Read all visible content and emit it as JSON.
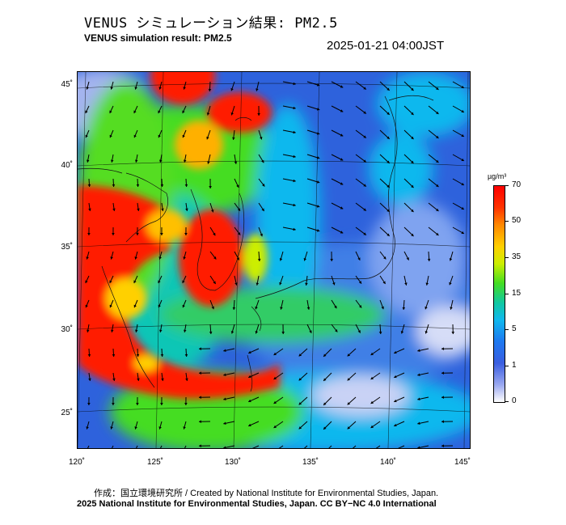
{
  "header": {
    "title_jp": "VENUS シミュレーション結果: PM2.5",
    "title_en": "VENUS simulation result: PM2.5",
    "timestamp": "2025-01-21 04:00JST"
  },
  "map": {
    "region": "East Asia / Japan",
    "lat_labels": [
      "45˚",
      "40˚",
      "35˚",
      "30˚",
      "25˚"
    ],
    "lon_labels": [
      "120˚",
      "125˚",
      "130˚",
      "135˚",
      "140˚",
      "145˚"
    ],
    "overlay": "wind-vectors",
    "colors": {
      "high": "#ff0000",
      "mid": "#44dd22",
      "low": "#1e78f0",
      "background": "#ffffff"
    }
  },
  "colorbar": {
    "unit": "µg/m³",
    "labels": [
      "70",
      "50",
      "35",
      "15",
      "5",
      "1",
      "0"
    ]
  },
  "footer": {
    "credit": "作成：国立環境研究所 / Created by National Institute for Environmental Studies, Japan.",
    "copyright": "2025 National Institute for Environmental Studies, Japan. CC BY−NC 4.0 International"
  }
}
